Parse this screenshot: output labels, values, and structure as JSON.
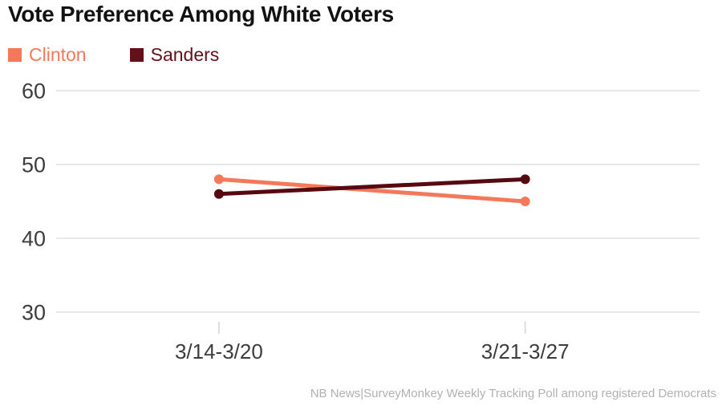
{
  "title": "Vote Preference Among White Voters",
  "legend": {
    "items": [
      {
        "label": "Clinton",
        "color": "#f4795b"
      },
      {
        "label": "Sanders",
        "color": "#641019"
      }
    ]
  },
  "chart_data": {
    "type": "line",
    "categories": [
      "3/14-3/20",
      "3/21-3/27"
    ],
    "series": [
      {
        "name": "Clinton",
        "color": "#f4795b",
        "values": [
          48,
          45
        ]
      },
      {
        "name": "Sanders",
        "color": "#56090f",
        "values": [
          46,
          48
        ]
      }
    ],
    "title": "Vote Preference Among White Voters",
    "xlabel": "",
    "ylabel": "",
    "ylim": [
      30,
      60
    ],
    "yticks": [
      30,
      40,
      50,
      60
    ],
    "grid": "horizontal",
    "legend_position": "top-left",
    "colors": {
      "gridline": "#e7e7e7",
      "tick": "#d4d4d4",
      "axis_label": "#3d3d3d"
    }
  },
  "footer": {
    "source": "NB News|SurveyMonkey Weekly Tracking Poll among registered Democrats"
  }
}
